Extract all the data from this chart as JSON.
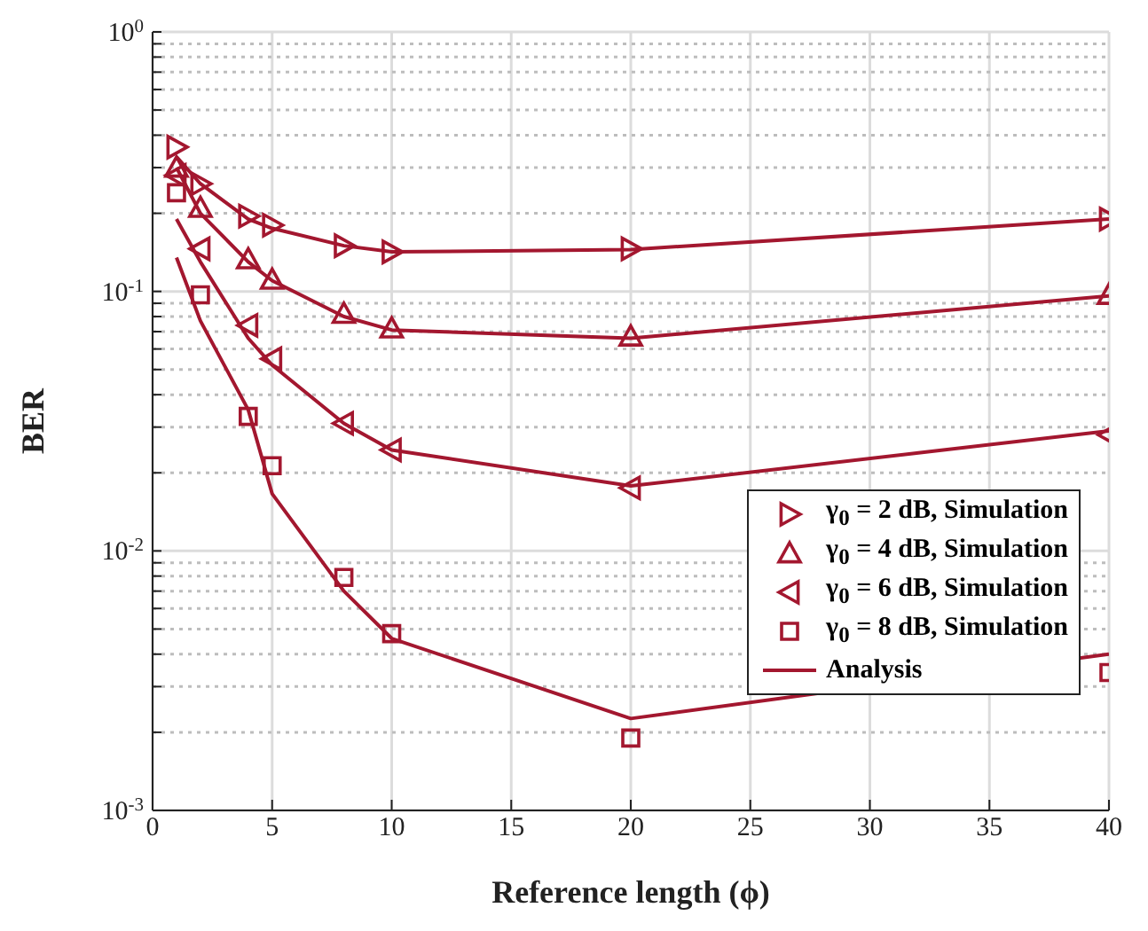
{
  "chart_data": {
    "type": "scatter",
    "xlabel": "Reference length (ϕ)",
    "ylabel": "BER",
    "log": "y",
    "grid": true,
    "legend": "bottom right",
    "xlim": [
      0,
      40
    ],
    "xticks": [
      0,
      5,
      10,
      15,
      20,
      25,
      30,
      35,
      40
    ],
    "ylim": [
      0.001,
      1
    ],
    "yticks": [
      {
        "value": 0.001,
        "label": "10$^{-3}$"
      },
      {
        "value": 0.002,
        "label": null
      },
      {
        "value": 0.003,
        "label": null
      },
      {
        "value": 0.004,
        "label": null
      },
      {
        "value": 0.005,
        "label": null
      },
      {
        "value": 0.006,
        "label": null
      },
      {
        "value": 0.007,
        "label": null
      },
      {
        "value": 0.008,
        "label": null
      },
      {
        "value": 0.009,
        "label": null
      },
      {
        "value": 0.01,
        "label": "10$^{-2}$"
      },
      {
        "value": 0.02,
        "label": null
      },
      {
        "value": 0.03,
        "label": null
      },
      {
        "value": 0.04,
        "label": null
      },
      {
        "value": 0.05,
        "label": null
      },
      {
        "value": 0.06,
        "label": null
      },
      {
        "value": 0.07,
        "label": null
      },
      {
        "value": 0.08,
        "label": null
      },
      {
        "value": 0.09,
        "label": null
      },
      {
        "value": 0.1,
        "label": "10$^{-1}$"
      },
      {
        "value": 0.2,
        "label": null
      },
      {
        "value": 0.3,
        "label": null
      },
      {
        "value": 0.4,
        "label": null
      },
      {
        "value": 0.5,
        "label": null
      },
      {
        "value": 0.6,
        "label": null
      },
      {
        "value": 0.7,
        "label": null
      },
      {
        "value": 0.8,
        "label": null
      },
      {
        "value": 0.9,
        "label": null
      },
      {
        "value": 1,
        "label": "10$^{0}$"
      }
    ],
    "series": [
      {
        "name": "γ$_{0}$ = 2 dB, Simulation",
        "marker": "triangle-right",
        "color": "#a3172f",
        "x": [
          1,
          2,
          4,
          5,
          8,
          10,
          20,
          40
        ],
        "values": [
          0.36,
          0.26,
          0.195,
          0.18,
          0.15,
          0.142,
          0.146,
          0.19
        ]
      },
      {
        "name": "γ$_{0}$ = 4 dB, Simulation",
        "marker": "triangle",
        "color": "#a3172f",
        "x": [
          1,
          2,
          4,
          5,
          8,
          10,
          20,
          40
        ],
        "values": [
          0.3,
          0.21,
          0.133,
          0.111,
          0.082,
          0.072,
          0.067,
          0.097
        ]
      },
      {
        "name": "γ$_{0}$ = 6 dB, Simulation",
        "marker": "triangle-left",
        "color": "#a3172f",
        "x": [
          1,
          2,
          4,
          5,
          8,
          10,
          20,
          40
        ],
        "values": [
          0.28,
          0.146,
          0.074,
          0.055,
          0.031,
          0.0245,
          0.0175,
          0.028
        ]
      },
      {
        "name": "γ$_{0}$ = 8 dB, Simulation",
        "marker": "square",
        "color": "#a3172f",
        "x": [
          1,
          2,
          4,
          5,
          8,
          10,
          20,
          40
        ],
        "values": [
          0.24,
          0.097,
          0.033,
          0.0213,
          0.0079,
          0.0048,
          0.0019,
          0.0034
        ]
      },
      {
        "name": "Analysis",
        "type": "line",
        "marker": "none",
        "line_style": "solid",
        "color": "#a3172f",
        "x": [
          1,
          2,
          4,
          5,
          8,
          10,
          20,
          40
        ],
        "values": [
          0.33,
          0.26,
          0.19,
          0.175,
          0.15,
          0.142,
          0.145,
          0.19
        ]
      },
      {
        "type": "line",
        "marker": "none",
        "line_style": "solid",
        "color": "#a3172f",
        "x": [
          1,
          2,
          4,
          5,
          8,
          10,
          20,
          40
        ],
        "values": [
          0.3,
          0.2,
          0.13,
          0.11,
          0.08,
          0.071,
          0.066,
          0.096
        ]
      },
      {
        "type": "line",
        "marker": "none",
        "line_style": "solid",
        "color": "#a3172f",
        "x": [
          1,
          2,
          4,
          5,
          8,
          10,
          20,
          40
        ],
        "values": [
          0.19,
          0.13,
          0.066,
          0.052,
          0.031,
          0.0245,
          0.0178,
          0.029
        ]
      },
      {
        "type": "line",
        "marker": "none",
        "line_style": "solid",
        "color": "#a3172f",
        "x": [
          1,
          2,
          4,
          5,
          8,
          10,
          20,
          40
        ],
        "values": [
          0.135,
          0.077,
          0.035,
          0.0166,
          0.007,
          0.0046,
          0.00226,
          0.004
        ]
      }
    ]
  }
}
